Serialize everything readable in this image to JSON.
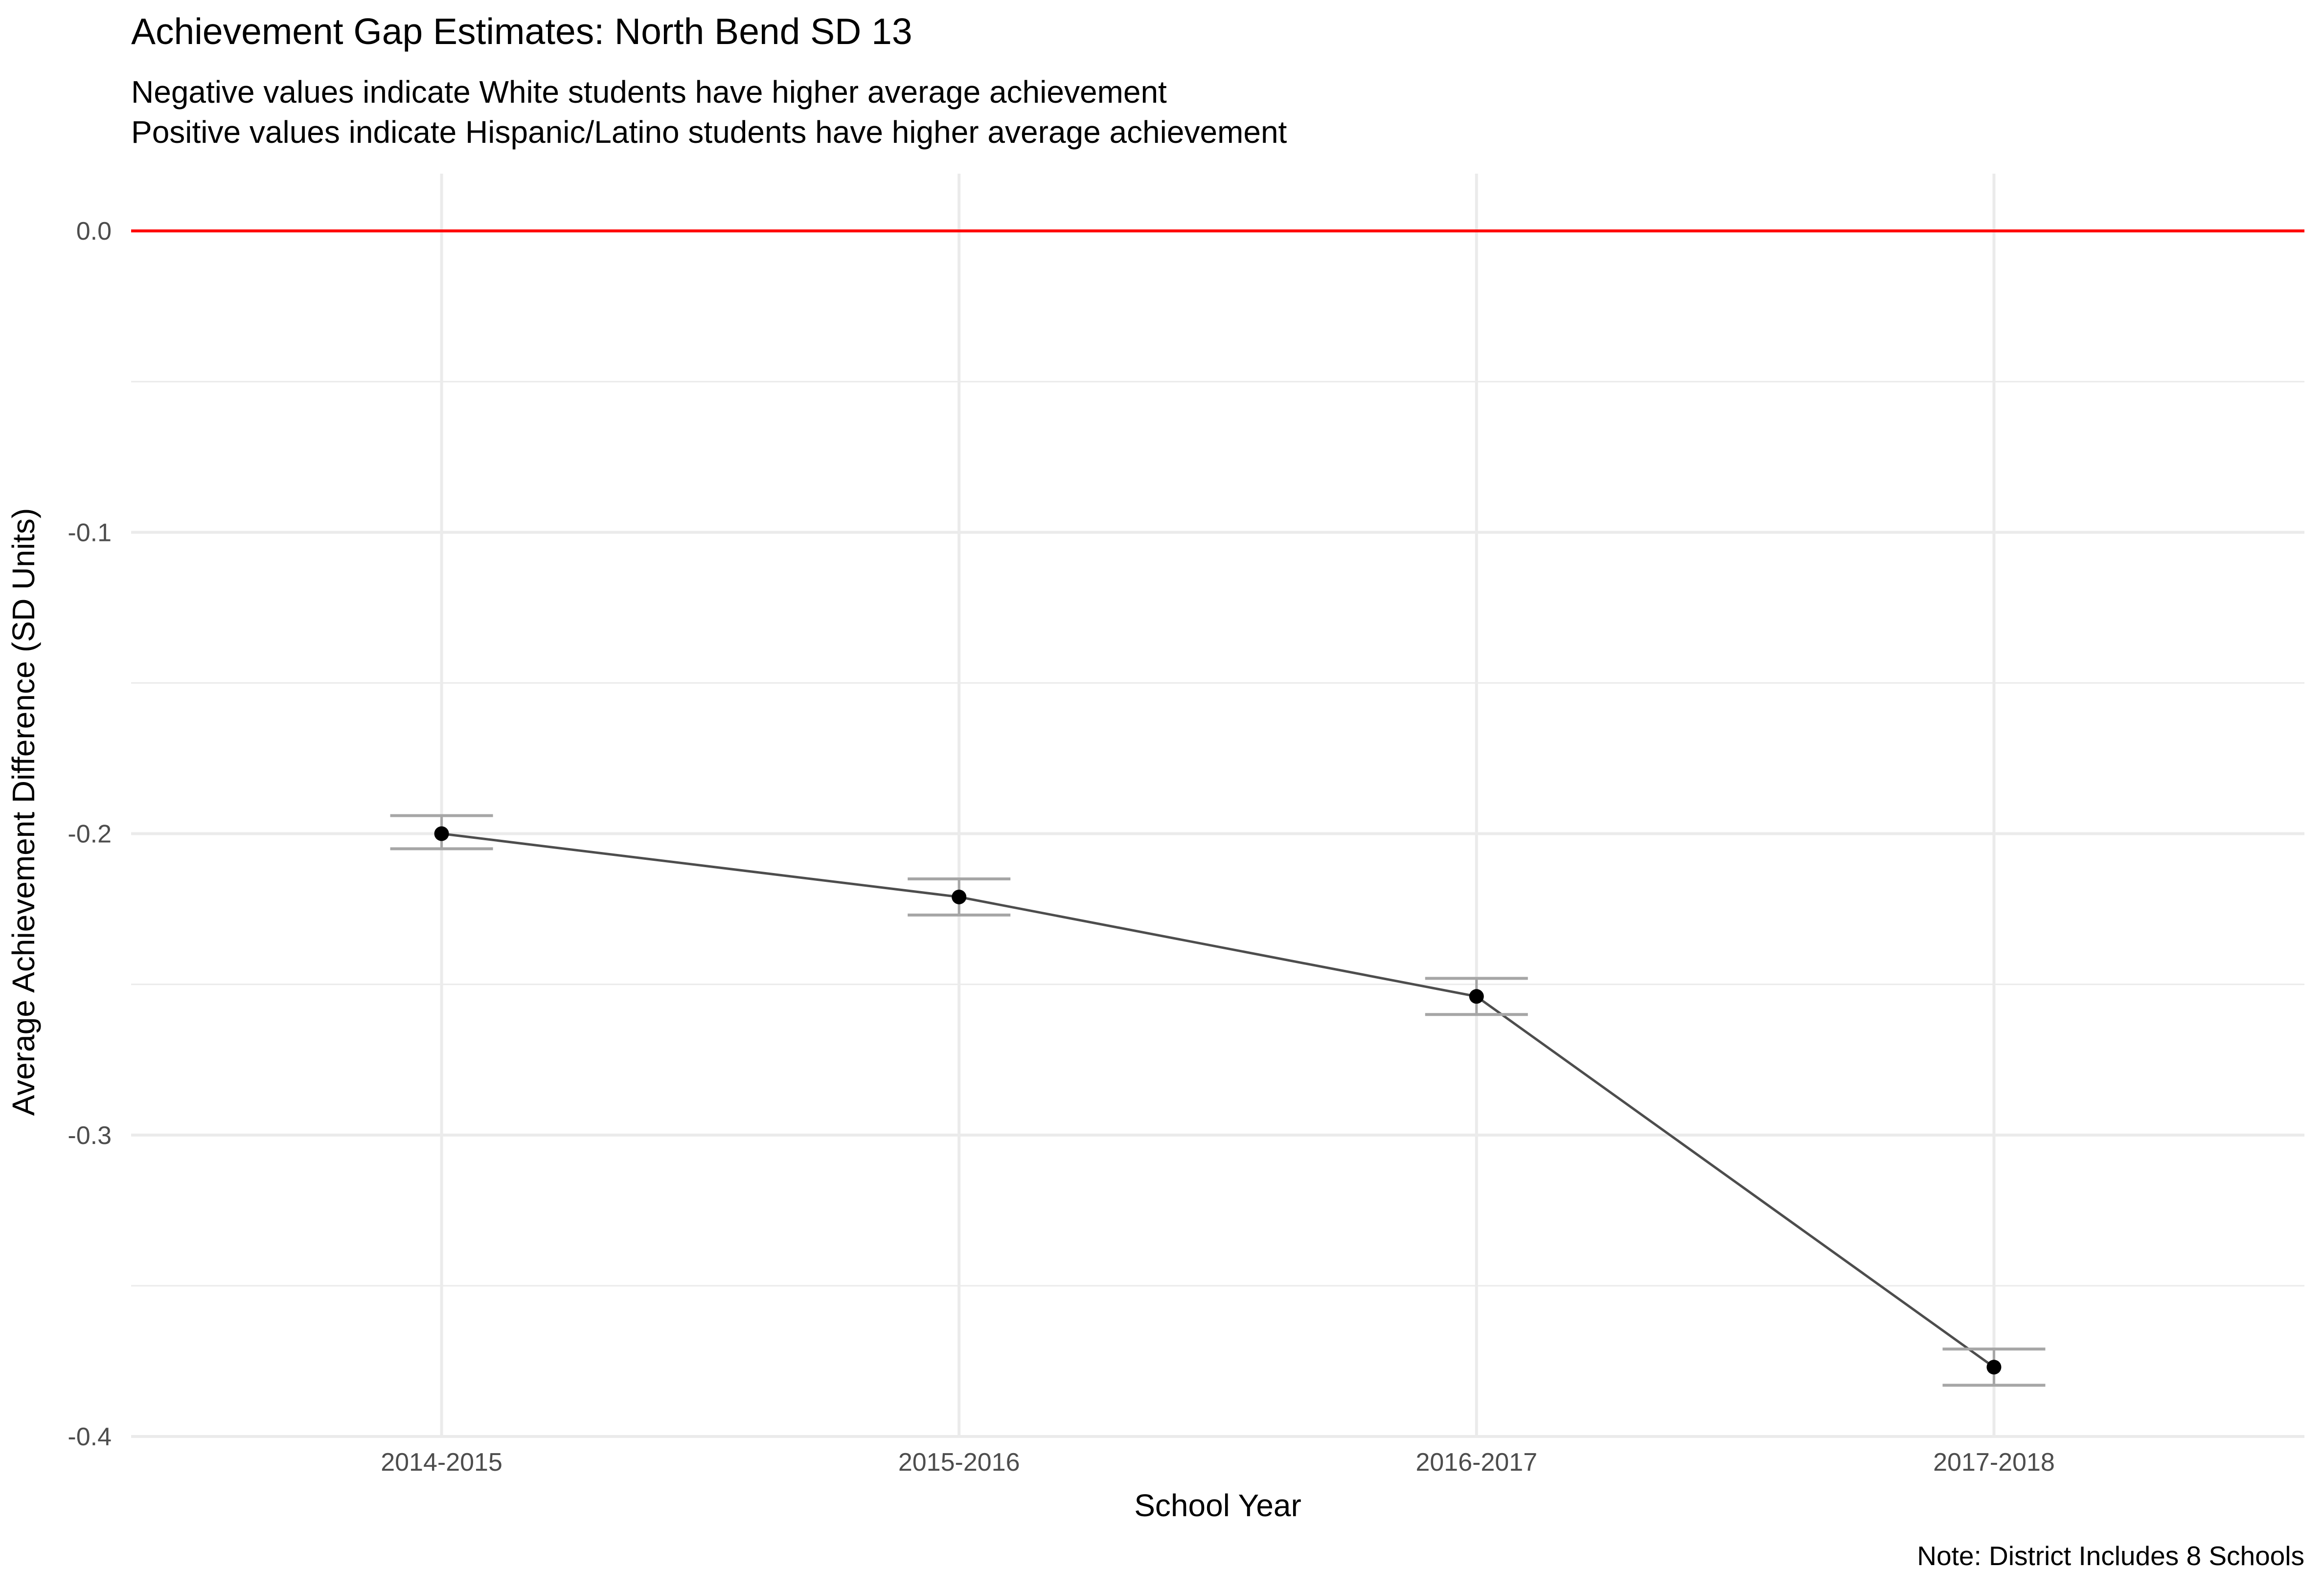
{
  "chart_data": {
    "type": "line",
    "title": "Achievement Gap Estimates: North Bend SD 13",
    "subtitle": [
      "Negative values indicate White students have higher average achievement",
      "Positive values indicate Hispanic/Latino students have higher average achievement"
    ],
    "xlabel": "School Year",
    "ylabel": "Average Achievement Difference (SD Units)",
    "caption": "Note: District Includes 8 Schools",
    "categories": [
      "2014-2015",
      "2015-2016",
      "2016-2017",
      "2017-2018"
    ],
    "series": [
      {
        "values": [
          -0.2,
          -0.221,
          -0.254,
          -0.377
        ],
        "lower": [
          -0.205,
          -0.227,
          -0.26,
          -0.383
        ],
        "upper": [
          -0.194,
          -0.215,
          -0.248,
          -0.371
        ]
      }
    ],
    "y_ticks": [
      0.0,
      -0.1,
      -0.2,
      -0.3,
      -0.4
    ],
    "y_tick_labels": [
      "0.0",
      "-0.1",
      "-0.2",
      "-0.3",
      "-0.4"
    ],
    "ylim": [
      -0.4,
      0.019
    ],
    "reference_line": {
      "y": 0.0,
      "color": "#ff0000"
    },
    "grid": true,
    "colors": {
      "line": "#4d4d4d",
      "point": "#000000",
      "errorbar": "#a6a6a6",
      "grid": "#ebebeb"
    }
  }
}
